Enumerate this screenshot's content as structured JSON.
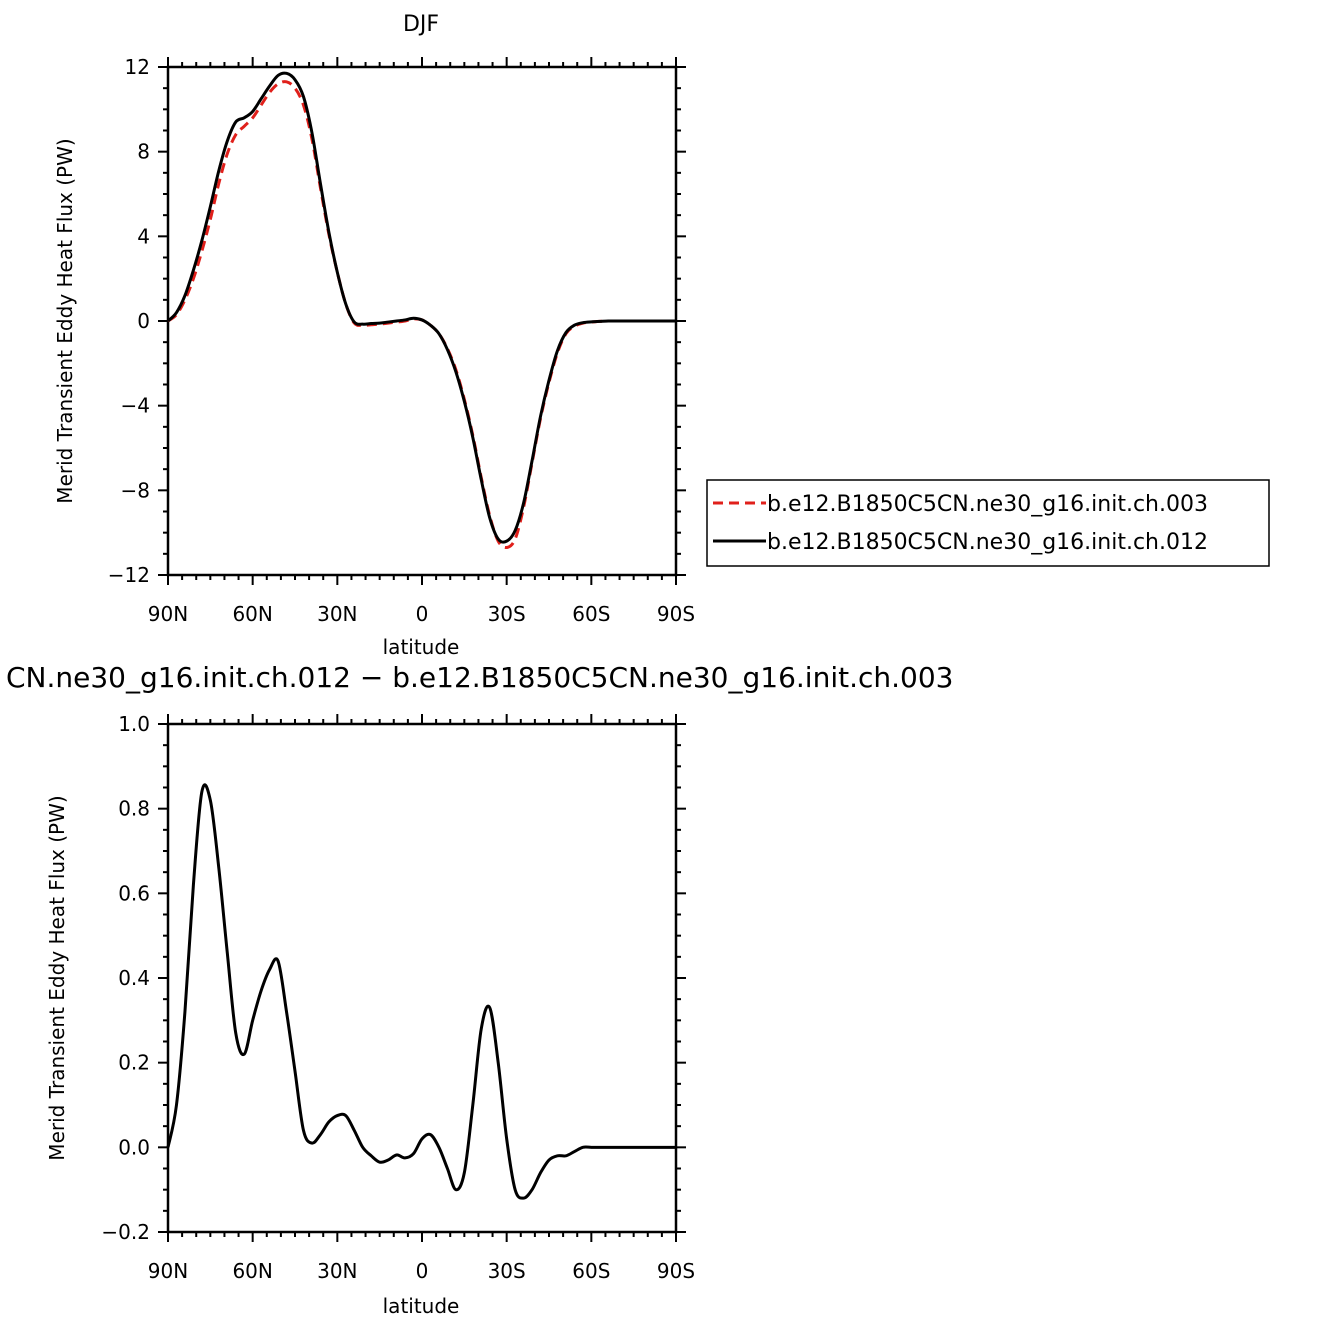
{
  "chart_data": [
    {
      "type": "line",
      "title": "DJF",
      "xlabel": "latitude",
      "ylabel": "Merid Transient Eddy Heat Flux (PW)",
      "xlim": [
        90,
        -90
      ],
      "ylim": [
        -12,
        12
      ],
      "x_ticks": [
        90,
        60,
        30,
        0,
        -30,
        -60,
        -90
      ],
      "x_tick_labels": [
        "90N",
        "60N",
        "30N",
        "0",
        "30S",
        "60S",
        "90S"
      ],
      "y_ticks": [
        -12,
        -8,
        -4,
        0,
        4,
        8,
        12
      ],
      "y_tick_labels": [
        "−12",
        "−8",
        "−4",
        "0",
        "4",
        "8",
        "12"
      ],
      "legend_position": "right",
      "series": [
        {
          "name": "b.e12.B1850C5CN.ne30_g16.init.ch.003",
          "color": "#e0201b",
          "dash": "dashed",
          "x": [
            90,
            87,
            84,
            81,
            78,
            75,
            72,
            69,
            66,
            63,
            60,
            57,
            54,
            51,
            48,
            45,
            42,
            39,
            36,
            33,
            30,
            27,
            24,
            21,
            18,
            15,
            12,
            9,
            6,
            3,
            0,
            -3,
            -6,
            -9,
            -12,
            -15,
            -18,
            -21,
            -24,
            -27,
            -30,
            -33,
            -36,
            -39,
            -42,
            -45,
            -48,
            -51,
            -54,
            -57,
            -60,
            -63,
            -66,
            -69,
            -72,
            -75,
            -78,
            -81,
            -84,
            -87,
            -90
          ],
          "y": [
            0.0,
            0.3,
            1.0,
            2.0,
            3.3,
            4.8,
            6.5,
            7.9,
            8.8,
            9.2,
            9.6,
            10.2,
            10.8,
            11.2,
            11.3,
            11.0,
            10.2,
            8.6,
            6.3,
            4.1,
            2.3,
            0.8,
            -0.1,
            -0.2,
            -0.18,
            -0.15,
            -0.1,
            -0.05,
            0.0,
            0.1,
            0.05,
            -0.2,
            -0.6,
            -1.3,
            -2.3,
            -3.7,
            -5.4,
            -7.4,
            -9.2,
            -10.4,
            -10.7,
            -10.3,
            -8.8,
            -6.7,
            -4.6,
            -2.9,
            -1.5,
            -0.6,
            -0.25,
            -0.1,
            -0.05,
            -0.02,
            0.0,
            0.0,
            0.0,
            0.0,
            0.0,
            0.0,
            0.0,
            0.0,
            0.0
          ]
        },
        {
          "name": "b.e12.B1850C5CN.ne30_g16.init.ch.012",
          "color": "#000000",
          "dash": "solid",
          "x": [
            90,
            87,
            84,
            81,
            78,
            75,
            72,
            69,
            66,
            63,
            60,
            57,
            54,
            51,
            48,
            45,
            42,
            39,
            36,
            33,
            30,
            27,
            24,
            21,
            18,
            15,
            12,
            9,
            6,
            3,
            0,
            -3,
            -6,
            -9,
            -12,
            -15,
            -18,
            -21,
            -24,
            -27,
            -30,
            -33,
            -36,
            -39,
            -42,
            -45,
            -48,
            -51,
            -54,
            -57,
            -60,
            -63,
            -66,
            -69,
            -72,
            -75,
            -78,
            -81,
            -84,
            -87,
            -90
          ],
          "y": [
            0.0,
            0.4,
            1.2,
            2.4,
            3.8,
            5.4,
            7.1,
            8.5,
            9.4,
            9.6,
            9.9,
            10.5,
            11.1,
            11.6,
            11.7,
            11.4,
            10.6,
            8.9,
            6.5,
            4.2,
            2.3,
            0.8,
            -0.05,
            -0.15,
            -0.12,
            -0.1,
            -0.05,
            0.0,
            0.05,
            0.13,
            0.05,
            -0.2,
            -0.6,
            -1.35,
            -2.4,
            -3.8,
            -5.5,
            -7.5,
            -9.3,
            -10.3,
            -10.4,
            -9.9,
            -8.6,
            -6.6,
            -4.5,
            -2.8,
            -1.4,
            -0.55,
            -0.2,
            -0.08,
            -0.04,
            -0.02,
            0.0,
            0.0,
            0.0,
            0.0,
            0.0,
            0.0,
            0.0,
            0.0,
            0.0
          ]
        }
      ]
    },
    {
      "type": "line",
      "title": "CN.ne30_g16.init.ch.012 − b.e12.B1850C5CN.ne30_g16.init.ch.003",
      "xlabel": "latitude",
      "ylabel": "Merid Transient Eddy Heat Flux (PW)",
      "xlim": [
        90,
        -90
      ],
      "ylim": [
        -0.2,
        1.0
      ],
      "x_ticks": [
        90,
        60,
        30,
        0,
        -30,
        -60,
        -90
      ],
      "x_tick_labels": [
        "90N",
        "60N",
        "30N",
        "0",
        "30S",
        "60S",
        "90S"
      ],
      "y_ticks": [
        -0.2,
        0.0,
        0.2,
        0.4,
        0.6,
        0.8,
        1.0
      ],
      "y_tick_labels": [
        "−0.2",
        "0.0",
        "0.2",
        "0.4",
        "0.6",
        "0.8",
        "1.0"
      ],
      "series": [
        {
          "color": "#000000",
          "dash": "solid",
          "x": [
            90,
            87,
            84,
            81,
            78,
            75,
            72,
            69,
            66,
            63,
            60,
            57,
            54,
            51,
            48,
            45,
            42,
            39,
            36,
            33,
            30,
            27,
            24,
            21,
            18,
            15,
            12,
            9,
            6,
            3,
            0,
            -3,
            -6,
            -9,
            -12,
            -15,
            -18,
            -21,
            -24,
            -27,
            -30,
            -33,
            -36,
            -39,
            -42,
            -45,
            -48,
            -51,
            -54,
            -57,
            -60,
            -63,
            -66,
            -69,
            -72,
            -75,
            -78,
            -81,
            -84,
            -87,
            -90
          ],
          "y": [
            0.0,
            0.1,
            0.32,
            0.62,
            0.84,
            0.82,
            0.66,
            0.46,
            0.27,
            0.22,
            0.3,
            0.37,
            0.42,
            0.44,
            0.32,
            0.18,
            0.04,
            0.01,
            0.03,
            0.06,
            0.075,
            0.075,
            0.04,
            0.0,
            -0.02,
            -0.035,
            -0.03,
            -0.018,
            -0.025,
            -0.015,
            0.02,
            0.03,
            0.0,
            -0.05,
            -0.1,
            -0.06,
            0.1,
            0.28,
            0.33,
            0.2,
            0.02,
            -0.1,
            -0.12,
            -0.1,
            -0.06,
            -0.03,
            -0.02,
            -0.02,
            -0.01,
            0.0,
            0.0,
            0.0,
            0.0,
            0.0,
            0.0,
            0.0,
            0.0,
            0.0,
            0.0,
            0.0,
            0.0
          ]
        }
      ]
    }
  ]
}
